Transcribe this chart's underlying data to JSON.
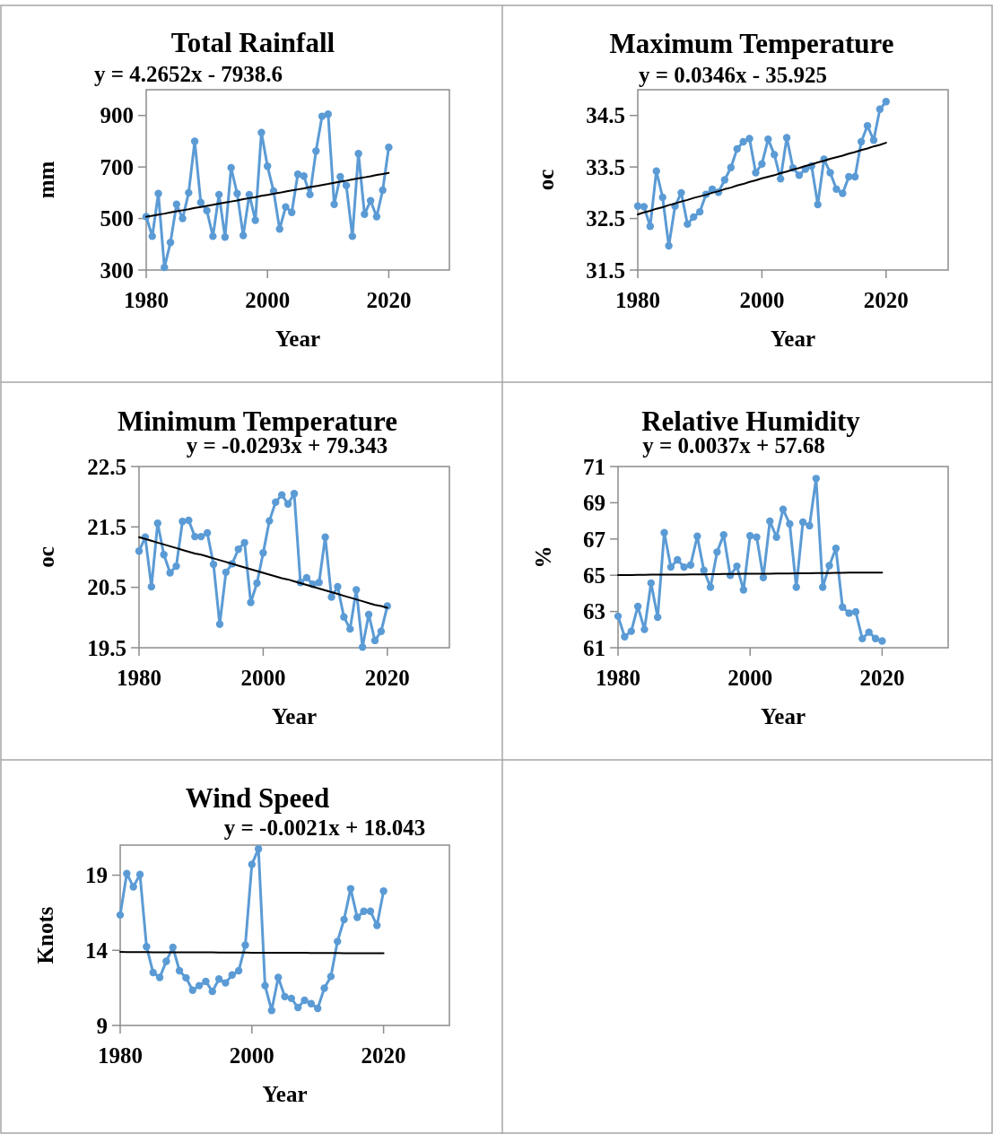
{
  "chart_data": [
    {
      "type": "line",
      "title": "Total Rainfall",
      "subtitle": "y = 4.2652x - 7938.6",
      "xlabel": "Year",
      "ylabel": "mm",
      "xlim": [
        1980,
        2030
      ],
      "xticks": [
        1980,
        2000,
        2020
      ],
      "ylim": [
        300,
        1000
      ],
      "yticks": [
        300,
        500,
        700,
        900
      ],
      "grid": false,
      "marker": "circle",
      "x": [
        1980,
        1981,
        1982,
        1983,
        1984,
        1985,
        1986,
        1987,
        1988,
        1989,
        1990,
        1991,
        1992,
        1993,
        1994,
        1995,
        1996,
        1997,
        1998,
        1999,
        2000,
        2001,
        2002,
        2003,
        2004,
        2005,
        2006,
        2007,
        2008,
        2009,
        2010,
        2011,
        2012,
        2013,
        2014,
        2015,
        2016,
        2017,
        2018,
        2019,
        2020
      ],
      "series": [
        {
          "color": "#5b9bd5",
          "values": [
            507,
            431,
            597,
            310,
            407,
            555,
            500,
            600,
            800,
            562,
            531,
            431,
            593,
            428,
            697,
            597,
            434,
            593,
            493,
            834,
            703,
            607,
            459,
            545,
            524,
            672,
            665,
            593,
            762,
            897,
            905,
            555,
            662,
            628,
            431,
            752,
            517,
            569,
            507,
            610,
            776
          ]
        },
        {
          "type": "line",
          "marker": "none",
          "color": "#000000",
          "values": [
            507,
            511,
            515,
            519,
            524,
            528,
            532,
            536,
            541,
            545,
            549,
            553,
            558,
            562,
            566,
            570,
            575,
            579,
            583,
            588,
            592,
            596,
            600,
            605,
            609,
            613,
            617,
            622,
            626,
            630,
            634,
            639,
            643,
            647,
            652,
            656,
            660,
            664,
            669,
            673,
            677
          ]
        }
      ]
    },
    {
      "type": "line",
      "title": "Maximum Temperature",
      "subtitle": "y = 0.0346x - 35.925",
      "xlabel": "Year",
      "ylabel": "oc",
      "xlim": [
        1980,
        2030
      ],
      "xticks": [
        1980,
        2000,
        2020
      ],
      "ylim": [
        31.5,
        35
      ],
      "yticks": [
        31.5,
        32.5,
        33.5,
        34.5
      ],
      "grid": false,
      "marker": "circle",
      "x": [
        1980,
        1981,
        1982,
        1983,
        1984,
        1985,
        1986,
        1987,
        1988,
        1989,
        1990,
        1991,
        1992,
        1993,
        1994,
        1995,
        1996,
        1997,
        1998,
        1999,
        2000,
        2001,
        2002,
        2003,
        2004,
        2005,
        2006,
        2007,
        2008,
        2009,
        2010,
        2011,
        2012,
        2013,
        2014,
        2015,
        2016,
        2017,
        2018,
        2019,
        2020
      ],
      "series": [
        {
          "color": "#5b9bd5",
          "values": [
            32.74,
            32.73,
            32.35,
            33.42,
            32.91,
            31.97,
            32.74,
            33.0,
            32.39,
            32.53,
            32.63,
            32.97,
            33.07,
            33.01,
            33.25,
            33.49,
            33.85,
            33.99,
            34.05,
            33.39,
            33.56,
            34.04,
            33.74,
            33.27,
            34.07,
            33.48,
            33.34,
            33.46,
            33.52,
            32.77,
            33.65,
            33.39,
            33.07,
            32.99,
            33.31,
            33.31,
            33.99,
            34.3,
            34.02,
            34.62,
            34.77
          ]
        },
        {
          "type": "line",
          "marker": "none",
          "color": "#000000",
          "values": [
            32.58,
            32.62,
            32.65,
            32.69,
            32.72,
            32.76,
            32.79,
            32.83,
            32.86,
            32.9,
            32.93,
            32.96,
            33.0,
            33.03,
            33.07,
            33.1,
            33.14,
            33.17,
            33.21,
            33.24,
            33.28,
            33.31,
            33.34,
            33.38,
            33.41,
            33.45,
            33.48,
            33.52,
            33.55,
            33.59,
            33.62,
            33.66,
            33.69,
            33.72,
            33.76,
            33.79,
            33.83,
            33.86,
            33.9,
            33.93,
            33.97
          ]
        }
      ]
    },
    {
      "type": "line",
      "title": "Minimum Temperature",
      "subtitle": "y = -0.0293x + 79.343",
      "xlabel": "Year",
      "ylabel": "oc",
      "xlim": [
        1980,
        2030
      ],
      "xticks": [
        1980,
        2000,
        2020
      ],
      "ylim": [
        19.5,
        22.5
      ],
      "yticks": [
        19.5,
        20.5,
        21.5,
        22.5
      ],
      "grid": false,
      "marker": "circle",
      "x": [
        1980,
        1981,
        1982,
        1983,
        1984,
        1985,
        1986,
        1987,
        1988,
        1989,
        1990,
        1991,
        1992,
        1993,
        1994,
        1995,
        1996,
        1997,
        1998,
        1999,
        2000,
        2001,
        2002,
        2003,
        2004,
        2005,
        2006,
        2007,
        2008,
        2009,
        2010,
        2011,
        2012,
        2013,
        2014,
        2015,
        2016,
        2017,
        2018,
        2019,
        2020
      ],
      "series": [
        {
          "color": "#5b9bd5",
          "values": [
            21.1,
            21.33,
            20.51,
            21.56,
            21.04,
            20.74,
            20.85,
            21.59,
            21.61,
            21.34,
            21.34,
            21.4,
            20.88,
            19.89,
            20.75,
            20.89,
            21.13,
            21.24,
            20.25,
            20.57,
            21.07,
            21.6,
            21.91,
            22.03,
            21.88,
            22.05,
            20.58,
            20.66,
            20.55,
            20.58,
            21.33,
            20.34,
            20.51,
            20.01,
            19.81,
            20.46,
            19.51,
            20.05,
            19.62,
            19.77,
            20.19
          ]
        },
        {
          "type": "line",
          "marker": "none",
          "color": "#000000",
          "values": [
            21.33,
            21.3,
            21.27,
            21.24,
            21.21,
            21.18,
            21.15,
            21.12,
            21.09,
            21.06,
            21.04,
            21.01,
            20.98,
            20.95,
            20.92,
            20.89,
            20.86,
            20.83,
            20.8,
            20.77,
            20.74,
            20.71,
            20.68,
            20.65,
            20.63,
            20.6,
            20.57,
            20.54,
            20.51,
            20.48,
            20.45,
            20.42,
            20.39,
            20.36,
            20.33,
            20.3,
            20.27,
            20.24,
            20.21,
            20.19,
            20.16
          ]
        }
      ]
    },
    {
      "type": "line",
      "title": "Relative Humidity",
      "subtitle": "y = 0.0037x + 57.68",
      "xlabel": "Year",
      "ylabel": "%",
      "xlim": [
        1980,
        2030
      ],
      "xticks": [
        1980,
        2000,
        2020
      ],
      "ylim": [
        61,
        71
      ],
      "yticks": [
        61,
        63,
        65,
        67,
        69,
        71
      ],
      "grid": false,
      "marker": "circle",
      "x": [
        1980,
        1981,
        1982,
        1983,
        1984,
        1985,
        1986,
        1987,
        1988,
        1989,
        1990,
        1991,
        1992,
        1993,
        1994,
        1995,
        1996,
        1997,
        1998,
        1999,
        2000,
        2001,
        2002,
        2003,
        2004,
        2005,
        2006,
        2007,
        2008,
        2009,
        2010,
        2011,
        2012,
        2013,
        2014,
        2015,
        2016,
        2017,
        2018,
        2019,
        2020
      ],
      "series": [
        {
          "color": "#5b9bd5",
          "values": [
            62.74,
            61.61,
            61.91,
            63.28,
            62.01,
            64.57,
            62.68,
            67.35,
            65.45,
            65.85,
            65.45,
            65.57,
            67.15,
            65.27,
            64.34,
            66.28,
            67.23,
            64.99,
            65.5,
            64.19,
            67.18,
            67.1,
            64.87,
            67.98,
            67.1,
            68.64,
            67.83,
            64.34,
            67.93,
            67.73,
            70.34,
            64.34,
            65.53,
            66.48,
            63.24,
            62.91,
            62.98,
            61.5,
            61.86,
            61.51,
            61.37
          ]
        },
        {
          "type": "line",
          "marker": "none",
          "color": "#000000",
          "values": [
            65.01,
            65.01,
            65.01,
            65.02,
            65.02,
            65.03,
            65.03,
            65.03,
            65.04,
            65.04,
            65.04,
            65.05,
            65.05,
            65.05,
            65.06,
            65.06,
            65.07,
            65.07,
            65.07,
            65.08,
            65.08,
            65.08,
            65.09,
            65.09,
            65.1,
            65.1,
            65.1,
            65.11,
            65.11,
            65.11,
            65.12,
            65.12,
            65.12,
            65.13,
            65.13,
            65.14,
            65.14,
            65.14,
            65.15,
            65.15,
            65.15
          ]
        }
      ]
    },
    {
      "type": "line",
      "title": "Wind Speed",
      "subtitle": "y = -0.0021x + 18.043",
      "xlabel": "Year",
      "ylabel": "Knots",
      "xlim": [
        1980,
        2030
      ],
      "xticks": [
        1980,
        2000,
        2020
      ],
      "ylim": [
        9,
        21
      ],
      "yticks": [
        9,
        14,
        19
      ],
      "grid": false,
      "marker": "circle",
      "x": [
        1980,
        1981,
        1982,
        1983,
        1984,
        1985,
        1986,
        1987,
        1988,
        1989,
        1990,
        1991,
        1992,
        1993,
        1994,
        1995,
        1996,
        1997,
        1998,
        1999,
        2000,
        2001,
        2002,
        2003,
        2004,
        2005,
        2006,
        2007,
        2008,
        2009,
        2010,
        2011,
        2012,
        2013,
        2014,
        2015,
        2016,
        2017,
        2018,
        2019,
        2020
      ],
      "series": [
        {
          "color": "#5b9bd5",
          "values": [
            16.35,
            19.11,
            18.22,
            19.05,
            14.24,
            12.52,
            12.19,
            13.27,
            14.2,
            12.64,
            12.17,
            11.34,
            11.65,
            11.93,
            11.26,
            12.09,
            11.83,
            12.36,
            12.64,
            14.34,
            19.72,
            20.75,
            11.65,
            10.0,
            12.19,
            10.92,
            10.8,
            10.19,
            10.67,
            10.45,
            10.13,
            11.48,
            12.26,
            14.59,
            16.05,
            18.1,
            16.19,
            16.6,
            16.6,
            15.66,
            17.94
          ]
        },
        {
          "type": "line",
          "marker": "none",
          "color": "#000000",
          "values": [
            13.89,
            13.88,
            13.88,
            13.88,
            13.88,
            13.87,
            13.87,
            13.87,
            13.87,
            13.87,
            13.86,
            13.86,
            13.86,
            13.86,
            13.86,
            13.85,
            13.85,
            13.85,
            13.85,
            13.85,
            13.84,
            13.84,
            13.84,
            13.84,
            13.84,
            13.83,
            13.83,
            13.83,
            13.83,
            13.82,
            13.82,
            13.82,
            13.82,
            13.82,
            13.81,
            13.81,
            13.81,
            13.81,
            13.81,
            13.8,
            13.8
          ]
        }
      ]
    }
  ]
}
